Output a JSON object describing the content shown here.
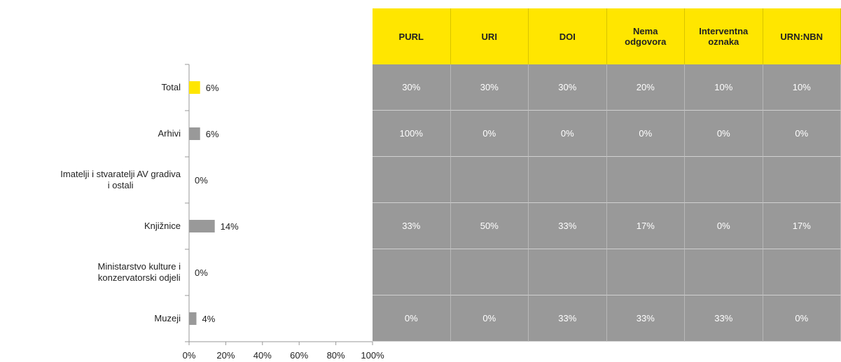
{
  "chart_data": {
    "type": "bar",
    "orientation": "horizontal",
    "categories": [
      "Total",
      "Arhivi",
      "Imatelji i stvaratelji AV gradiva\ni ostali",
      "Knjižnice",
      "Ministarstvo kulture i\nkonzervatorski odjeli",
      "Muzeji"
    ],
    "values": [
      6,
      6,
      0,
      14,
      0,
      4
    ],
    "value_labels": [
      "6%",
      "6%",
      "0%",
      "14%",
      "0%",
      "4%"
    ],
    "colors": [
      "#ffe600",
      "#999999",
      "#999999",
      "#999999",
      "#999999",
      "#999999"
    ],
    "xlim": [
      0,
      100
    ],
    "xticks": [
      {
        "value": 0,
        "label": "0%"
      },
      {
        "value": 20,
        "label": "20%"
      },
      {
        "value": 40,
        "label": "40%"
      },
      {
        "value": 60,
        "label": "60%"
      },
      {
        "value": 80,
        "label": "80%"
      },
      {
        "value": 100,
        "label": "100%"
      }
    ]
  },
  "table": {
    "columns": [
      "PURL",
      "URI",
      "DOI",
      "Nema\nodgovora",
      "Interventna\noznaka",
      "URN:NBN"
    ],
    "rows": [
      [
        "30%",
        "30%",
        "30%",
        "20%",
        "10%",
        "10%"
      ],
      [
        "100%",
        "0%",
        "0%",
        "0%",
        "0%",
        "0%"
      ],
      null,
      [
        "33%",
        "50%",
        "33%",
        "17%",
        "0%",
        "17%"
      ],
      null,
      [
        "0%",
        "0%",
        "33%",
        "33%",
        "33%",
        "0%"
      ]
    ]
  }
}
